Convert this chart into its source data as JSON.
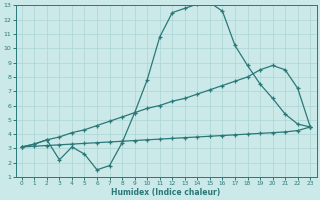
{
  "xlabel": "Humidex (Indice chaleur)",
  "xlim": [
    -0.5,
    23.5
  ],
  "ylim": [
    1,
    13
  ],
  "xticks": [
    0,
    1,
    2,
    3,
    4,
    5,
    6,
    7,
    8,
    9,
    10,
    11,
    12,
    13,
    14,
    15,
    16,
    17,
    18,
    19,
    20,
    21,
    22,
    23
  ],
  "yticks": [
    1,
    2,
    3,
    4,
    5,
    6,
    7,
    8,
    9,
    10,
    11,
    12,
    13
  ],
  "bg_color": "#cce9e9",
  "line_color": "#2a7878",
  "grid_color": "#aad4d4",
  "line1_x": [
    0,
    1,
    2,
    3,
    4,
    5,
    6,
    7,
    8,
    9,
    10,
    11,
    12,
    13,
    14,
    15,
    16,
    17,
    18,
    19,
    20,
    21,
    22,
    23
  ],
  "line1_y": [
    3.1,
    3.3,
    3.6,
    2.2,
    3.1,
    2.6,
    1.5,
    1.8,
    3.4,
    5.5,
    7.8,
    10.8,
    12.5,
    12.8,
    13.1,
    13.2,
    12.6,
    10.2,
    8.8,
    7.5,
    6.5,
    5.4,
    4.7,
    4.5
  ],
  "line2_x": [
    0,
    1,
    2,
    3,
    4,
    5,
    6,
    7,
    8,
    9,
    10,
    11,
    12,
    13,
    14,
    15,
    16,
    17,
    18,
    19,
    20,
    21,
    22,
    23
  ],
  "line2_y": [
    3.1,
    3.3,
    3.6,
    3.8,
    4.1,
    4.3,
    4.6,
    4.9,
    5.2,
    5.5,
    5.8,
    6.0,
    6.3,
    6.5,
    6.8,
    7.1,
    7.4,
    7.7,
    8.0,
    8.5,
    8.8,
    8.5,
    7.2,
    4.5
  ],
  "line3_x": [
    0,
    1,
    2,
    3,
    4,
    5,
    6,
    7,
    8,
    9,
    10,
    11,
    12,
    13,
    14,
    15,
    16,
    17,
    18,
    19,
    20,
    21,
    22,
    23
  ],
  "line3_y": [
    3.1,
    3.15,
    3.2,
    3.25,
    3.3,
    3.35,
    3.4,
    3.45,
    3.5,
    3.55,
    3.6,
    3.65,
    3.7,
    3.75,
    3.8,
    3.85,
    3.9,
    3.95,
    4.0,
    4.05,
    4.1,
    4.15,
    4.25,
    4.5
  ]
}
